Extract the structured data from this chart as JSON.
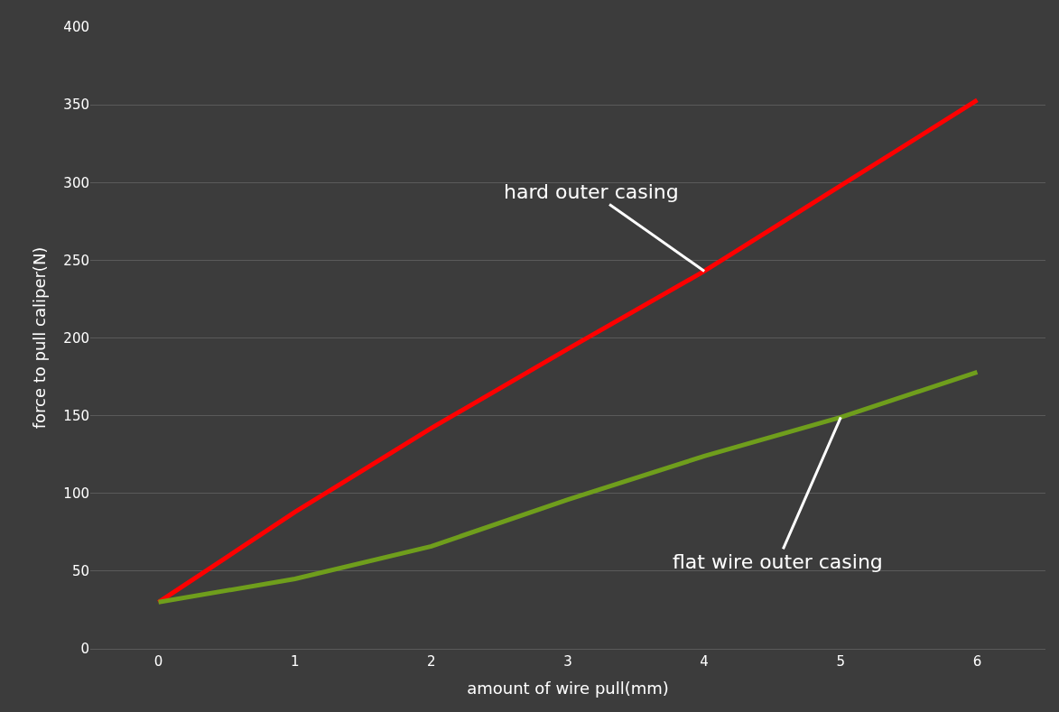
{
  "chart_data": {
    "type": "line",
    "xlabel": "amount of wire pull(mm)",
    "ylabel": "force to pull caliper(N)",
    "categories": [
      "0",
      "1",
      "2",
      "3",
      "4",
      "5",
      "6"
    ],
    "series": [
      {
        "color": "#ff0000",
        "values": [
          30,
          88,
          142,
          193,
          243,
          298,
          353
        ]
      },
      {
        "color": "#6f9e1c",
        "values": [
          30,
          45,
          66,
          96,
          124,
          149,
          178
        ]
      }
    ],
    "ylim": [
      0,
      400
    ],
    "yticks": [
      0,
      50,
      100,
      150,
      200,
      250,
      300,
      350,
      400
    ],
    "grid": "y",
    "marker": "none",
    "line_style": "solid",
    "annotations": [
      {
        "text": "hard outer casing",
        "x": "4",
        "y": 243
      },
      {
        "text": "flat wire outer casing",
        "x": "5",
        "y": 149
      }
    ]
  }
}
